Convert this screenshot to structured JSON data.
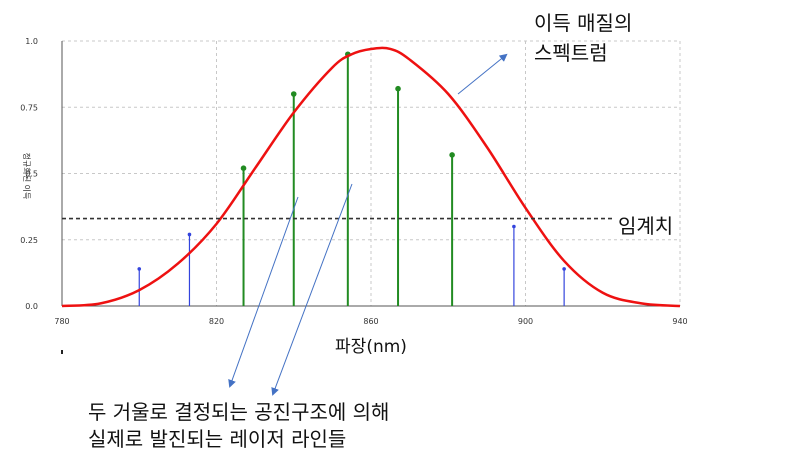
{
  "chart_data": {
    "type": "line",
    "xlabel": "파장(nm)",
    "ylabel": "정규화된 이득",
    "xlim": [
      780,
      940
    ],
    "ylim": [
      0,
      1.0
    ],
    "x_ticks": [
      780,
      820,
      860,
      900,
      940
    ],
    "y_ticks": [
      0.0,
      0.25,
      0.5,
      0.75,
      1.0
    ],
    "grid": true,
    "colors": {
      "gain_curve": "#ee1111",
      "threshold": "#333333",
      "lasing_mode": "#228b22",
      "sub_threshold_mode": "#3344dd",
      "arrow": "#4472c4"
    },
    "series": [
      {
        "name": "이득 매질의 스펙트럼",
        "x": [
          780,
          790,
          800,
          810,
          820,
          830,
          840,
          850,
          855,
          860,
          865,
          870,
          880,
          890,
          900,
          910,
          920,
          930,
          940
        ],
        "y": [
          0.0,
          0.01,
          0.06,
          0.16,
          0.31,
          0.52,
          0.73,
          0.9,
          0.95,
          0.97,
          0.97,
          0.93,
          0.8,
          0.6,
          0.37,
          0.17,
          0.05,
          0.01,
          0.0
        ]
      }
    ],
    "threshold": 0.33,
    "modes": [
      {
        "x": 800,
        "y": 0.14
      },
      {
        "x": 813,
        "y": 0.27
      },
      {
        "x": 827,
        "y": 0.52
      },
      {
        "x": 840,
        "y": 0.8
      },
      {
        "x": 854,
        "y": 0.95
      },
      {
        "x": 867,
        "y": 0.82
      },
      {
        "x": 881,
        "y": 0.57
      },
      {
        "x": 897,
        "y": 0.3
      },
      {
        "x": 910,
        "y": 0.14
      }
    ],
    "annotations": {
      "spectrum": [
        "이득 매질의",
        "스펙트럼"
      ],
      "threshold": "임계치",
      "cavity": [
        "두 거울로 결정되는 공진구조에 의해",
        "실제로 발진되는 레이저 라인들"
      ]
    }
  }
}
